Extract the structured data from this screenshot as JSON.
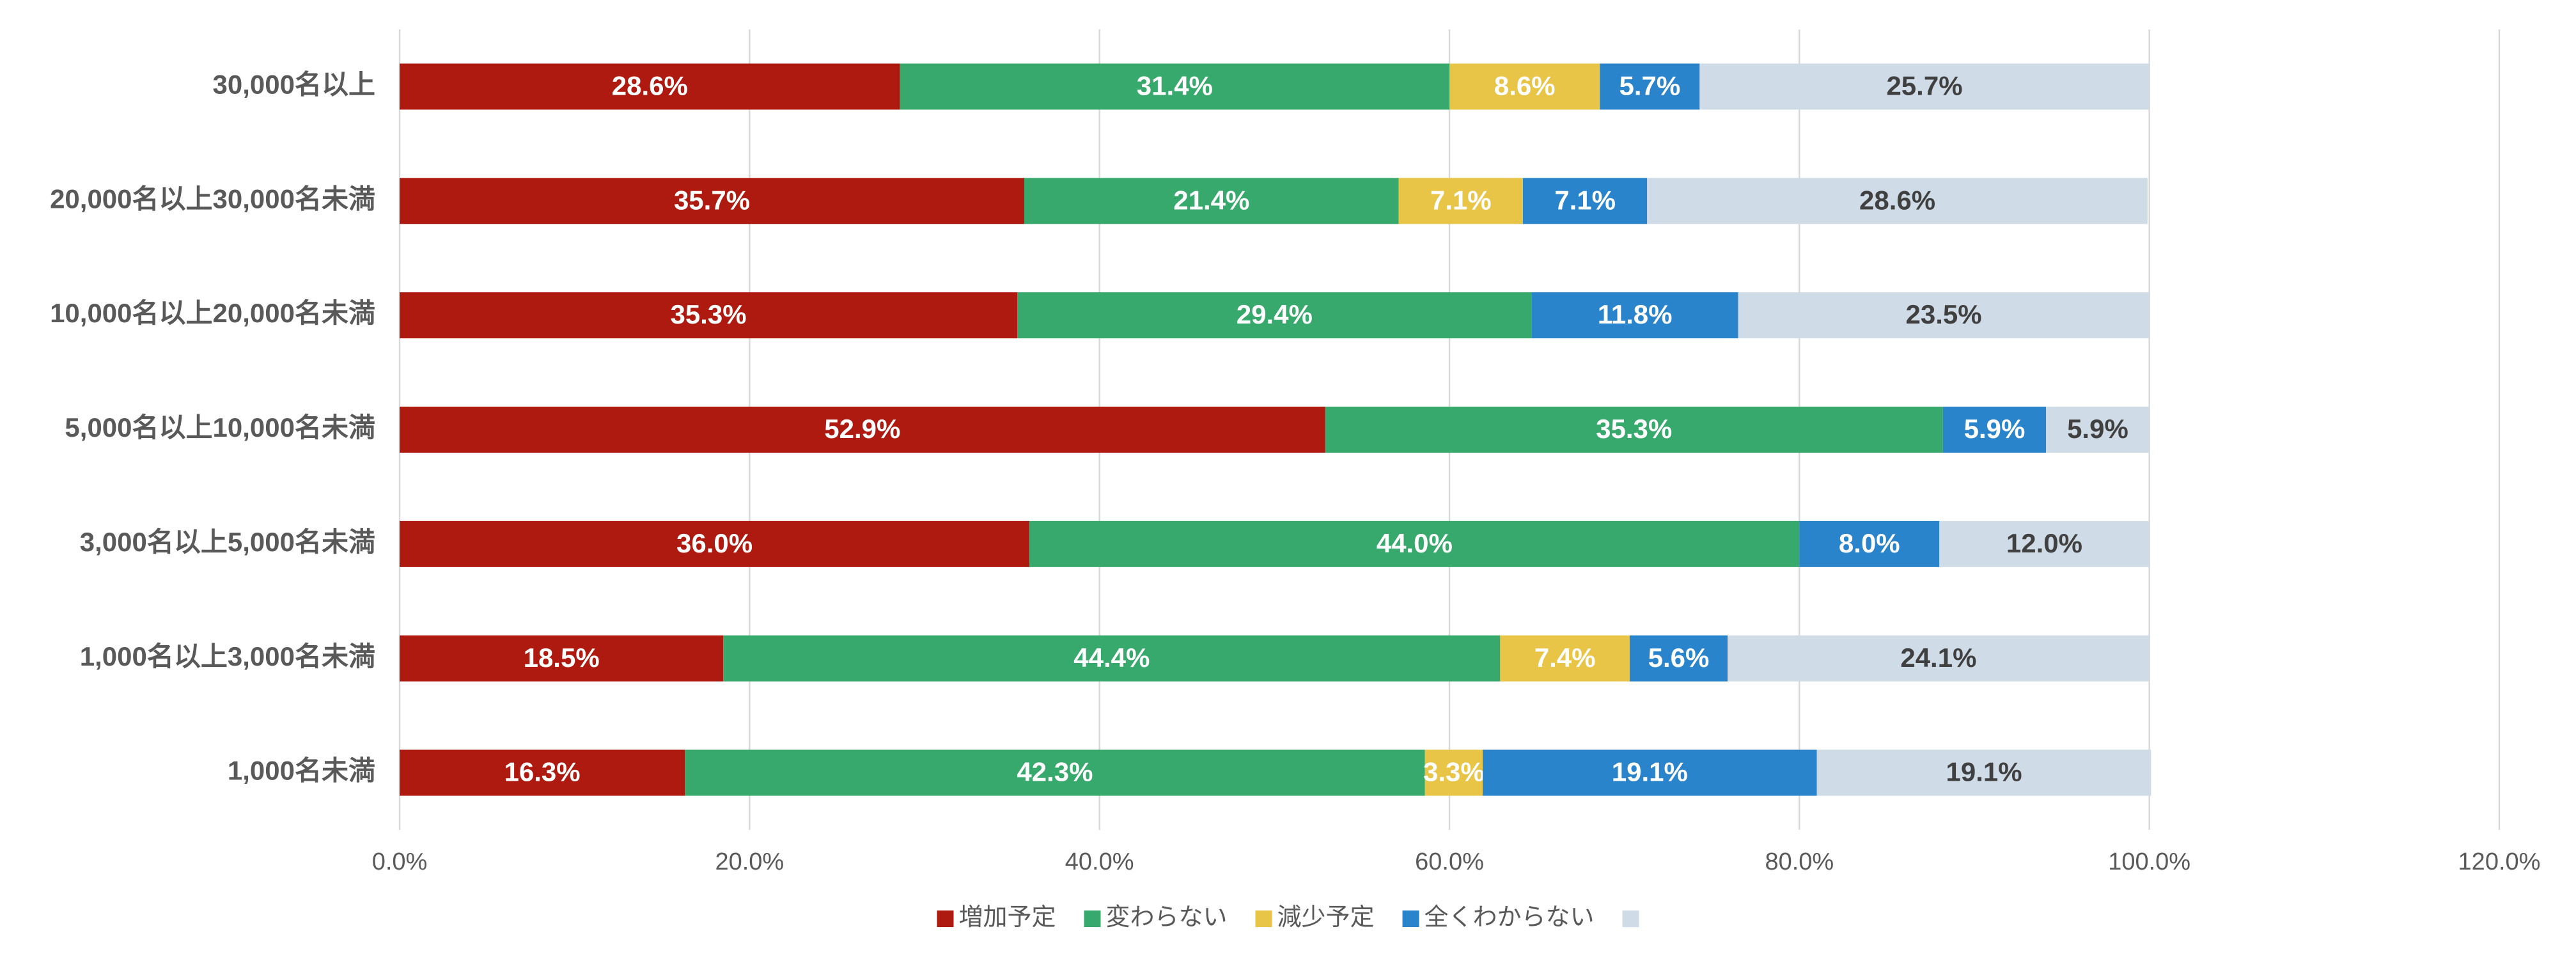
{
  "chart_data": {
    "type": "stacked-bar-horizontal",
    "categories": [
      "30,000名以上",
      "20,000名以上30,000名未満",
      "10,000名以上20,000名未満",
      "5,000名以上10,000名未満",
      "3,000名以上5,000名未満",
      "1,000名以上3,000名未満",
      "1,000名未満"
    ],
    "series": [
      {
        "name": "増加予定",
        "color": "#af1a10",
        "label_color": "#ffffff",
        "values": [
          28.6,
          35.7,
          35.3,
          52.9,
          36.0,
          18.5,
          16.3
        ],
        "value_labels": [
          "28.6%",
          "35.7%",
          "35.3%",
          "52.9%",
          "36.0%",
          "18.5%",
          "16.3%"
        ]
      },
      {
        "name": "変わらない",
        "color": "#38a96c",
        "label_color": "#ffffff",
        "values": [
          31.4,
          21.4,
          29.4,
          35.3,
          44.0,
          44.4,
          42.3
        ],
        "value_labels": [
          "31.4%",
          "21.4%",
          "29.4%",
          "35.3%",
          "44.0%",
          "44.4%",
          "42.3%"
        ]
      },
      {
        "name": "減少予定",
        "color": "#e8c447",
        "label_color": "#ffffff",
        "values": [
          8.6,
          7.1,
          null,
          null,
          null,
          7.4,
          3.3
        ],
        "value_labels": [
          "8.6%",
          "7.1%",
          null,
          null,
          null,
          "7.4%",
          "3.3%"
        ]
      },
      {
        "name": "全くわからない",
        "color": "#2a84cb",
        "label_color": "#ffffff",
        "values": [
          5.7,
          7.1,
          11.8,
          5.9,
          8.0,
          5.6,
          19.1
        ],
        "value_labels": [
          "5.7%",
          "7.1%",
          "11.8%",
          "5.9%",
          "8.0%",
          "5.6%",
          "19.1%"
        ]
      },
      {
        "name": null,
        "color": "#cfdbe6",
        "label_color": "#404040",
        "values": [
          25.7,
          28.6,
          23.5,
          5.9,
          12.0,
          24.1,
          19.1
        ],
        "value_labels": [
          "25.7%",
          "28.6%",
          "23.5%",
          "5.9%",
          "12.0%",
          "24.1%",
          "19.1%"
        ]
      }
    ],
    "xlim": [
      0,
      120
    ],
    "xticks": [
      {
        "value": 0,
        "label": "0.0%"
      },
      {
        "value": 20,
        "label": "20.0%"
      },
      {
        "value": 40,
        "label": "40.0%"
      },
      {
        "value": 60,
        "label": "60.0%"
      },
      {
        "value": 80,
        "label": "80.0%"
      },
      {
        "value": 100,
        "label": "100.0%"
      },
      {
        "value": 120,
        "label": "120.0%"
      }
    ],
    "grid": true,
    "legend": "bottom"
  }
}
